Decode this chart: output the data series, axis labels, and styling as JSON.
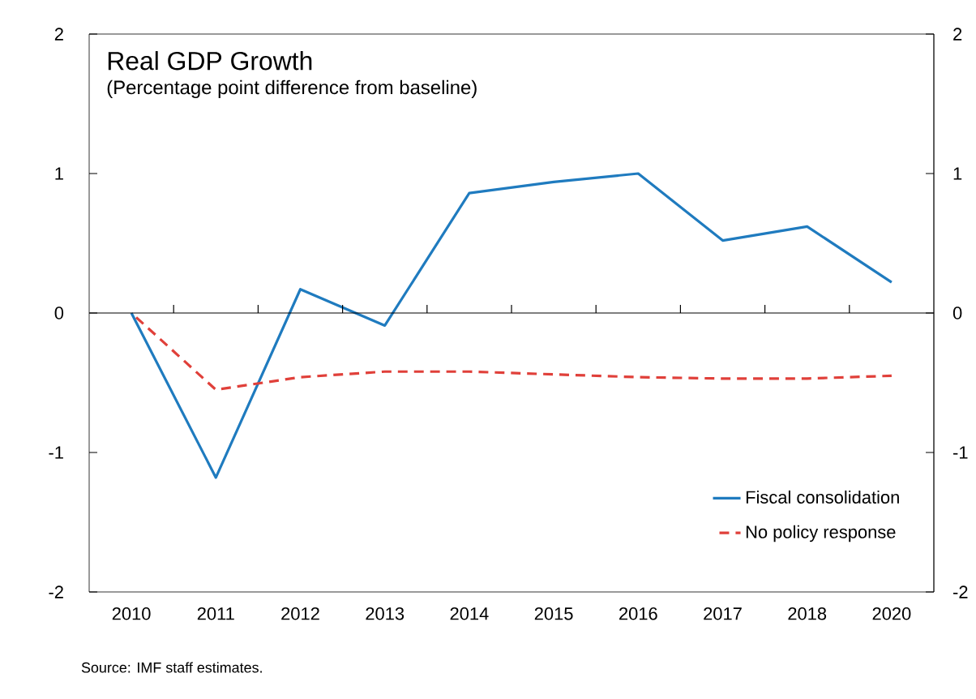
{
  "chart_data": {
    "type": "line",
    "title": "Real GDP Growth",
    "subtitle": "(Percentage point difference from baseline)",
    "categories": [
      "2010",
      "2011",
      "2012",
      "2013",
      "2014",
      "2015",
      "2016",
      "2017",
      "2018",
      "2020"
    ],
    "series": [
      {
        "name": "Fiscal consolidation",
        "color": "#1f7bbf",
        "line_style": "solid",
        "values": [
          0,
          -1.18,
          0.17,
          -0.09,
          0.86,
          0.94,
          1.0,
          0.52,
          0.62,
          0.22
        ]
      },
      {
        "name": "No policy response",
        "color": "#e0403a",
        "line_style": "dashed",
        "values": [
          0,
          -0.55,
          -0.46,
          -0.42,
          -0.42,
          -0.44,
          -0.46,
          -0.47,
          -0.47,
          -0.45
        ]
      }
    ],
    "ylim": [
      -2,
      2
    ],
    "yticks": [
      -2,
      -1,
      0,
      1,
      2
    ],
    "y2lim": [
      -2,
      2
    ],
    "y2ticks": [
      -2,
      -1,
      0,
      1,
      2
    ],
    "legend": "bottom right",
    "grid": false,
    "marker": "none",
    "ref_lines": [
      {
        "axis": "y",
        "value": 0,
        "color": "#000000"
      }
    ],
    "annotations": [
      "Source: IMF staff estimates."
    ]
  }
}
